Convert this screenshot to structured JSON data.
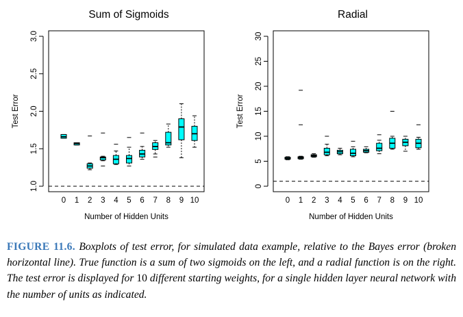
{
  "chart_data": [
    {
      "type": "boxplot",
      "title": "Sum of Sigmoids",
      "xlabel": "Number of Hidden Units",
      "ylabel": "Test Error",
      "categories": [
        "0",
        "1",
        "2",
        "3",
        "4",
        "5",
        "6",
        "7",
        "8",
        "9",
        "10"
      ],
      "ylim": [
        1.0,
        3.0
      ],
      "yticks": [
        "1.0",
        "1.5",
        "2.0",
        "2.5",
        "3.0"
      ],
      "reference_line": {
        "y": 1.0,
        "style": "dashed"
      },
      "box_color": "#00ffff",
      "boxes": [
        {
          "category": "0",
          "whisker_low": 1.64,
          "q1": 1.64,
          "median": 1.66,
          "q3": 1.69,
          "whisker_high": 1.69
        },
        {
          "category": "1",
          "whisker_low": 1.55,
          "q1": 1.55,
          "median": 1.57,
          "q3": 1.58,
          "whisker_high": 1.58
        },
        {
          "category": "2",
          "whisker_low": 1.22,
          "q1": 1.24,
          "median": 1.27,
          "q3": 1.3,
          "whisker_high": 1.31,
          "outliers": [
            1.67
          ]
        },
        {
          "category": "3",
          "whisker_low": 1.34,
          "q1": 1.35,
          "median": 1.38,
          "q3": 1.39,
          "whisker_high": 1.4,
          "outliers": [
            1.27,
            1.71
          ]
        },
        {
          "category": "4",
          "whisker_low": 1.29,
          "q1": 1.3,
          "median": 1.36,
          "q3": 1.41,
          "whisker_high": 1.47,
          "outliers": [
            1.56
          ]
        },
        {
          "category": "5",
          "whisker_low": 1.27,
          "q1": 1.31,
          "median": 1.37,
          "q3": 1.41,
          "whisker_high": 1.52,
          "outliers": [
            1.65
          ]
        },
        {
          "category": "6",
          "whisker_low": 1.36,
          "q1": 1.39,
          "median": 1.43,
          "q3": 1.48,
          "whisker_high": 1.53,
          "outliers": [
            1.71
          ]
        },
        {
          "category": "7",
          "whisker_low": 1.43,
          "q1": 1.49,
          "median": 1.53,
          "q3": 1.58,
          "whisker_high": 1.61,
          "outliers": [
            1.39
          ]
        },
        {
          "category": "8",
          "whisker_low": 1.52,
          "q1": 1.55,
          "median": 1.58,
          "q3": 1.72,
          "whisker_high": 1.83
        },
        {
          "category": "9",
          "whisker_low": 1.38,
          "q1": 1.62,
          "median": 1.79,
          "q3": 1.9,
          "whisker_high": 2.1
        },
        {
          "category": "10",
          "whisker_low": 1.52,
          "q1": 1.61,
          "median": 1.7,
          "q3": 1.8,
          "whisker_high": 1.94
        }
      ]
    },
    {
      "type": "boxplot",
      "title": "Radial",
      "xlabel": "Number of Hidden Units",
      "ylabel": "Test Error",
      "categories": [
        "0",
        "1",
        "2",
        "3",
        "4",
        "5",
        "6",
        "7",
        "8",
        "9",
        "10"
      ],
      "ylim": [
        0,
        30
      ],
      "yticks": [
        "0",
        "5",
        "10",
        "15",
        "20",
        "25",
        "30"
      ],
      "reference_line": {
        "y": 1.0,
        "style": "dashed"
      },
      "box_color": "#00ffff",
      "boxes": [
        {
          "category": "0",
          "whisker_low": 5.3,
          "q1": 5.4,
          "median": 5.6,
          "q3": 5.8,
          "whisker_high": 5.9
        },
        {
          "category": "1",
          "whisker_low": 5.4,
          "q1": 5.5,
          "median": 5.7,
          "q3": 5.9,
          "whisker_high": 6.0,
          "outliers": [
            12.3,
            19.2
          ]
        },
        {
          "category": "2",
          "whisker_low": 5.8,
          "q1": 5.9,
          "median": 6.1,
          "q3": 6.3,
          "whisker_high": 6.5
        },
        {
          "category": "3",
          "whisker_low": 6.1,
          "q1": 6.3,
          "median": 6.8,
          "q3": 7.6,
          "whisker_high": 8.4,
          "outliers": [
            10.0
          ]
        },
        {
          "category": "4",
          "whisker_low": 6.3,
          "q1": 6.5,
          "median": 6.9,
          "q3": 7.2,
          "whisker_high": 7.6
        },
        {
          "category": "5",
          "whisker_low": 5.9,
          "q1": 6.1,
          "median": 6.6,
          "q3": 7.4,
          "whisker_high": 7.9,
          "outliers": [
            9.0
          ]
        },
        {
          "category": "6",
          "whisker_low": 6.7,
          "q1": 6.8,
          "median": 7.1,
          "q3": 7.4,
          "whisker_high": 7.9
        },
        {
          "category": "7",
          "whisker_low": 6.5,
          "q1": 7.1,
          "median": 7.6,
          "q3": 8.6,
          "whisker_high": 9.2,
          "outliers": [
            10.3
          ]
        },
        {
          "category": "8",
          "whisker_low": 7.4,
          "q1": 7.6,
          "median": 8.6,
          "q3": 9.6,
          "whisker_high": 10.0,
          "outliers": [
            15.0
          ]
        },
        {
          "category": "9",
          "whisker_low": 7.0,
          "q1": 8.1,
          "median": 8.8,
          "q3": 9.4,
          "whisker_high": 10.0
        },
        {
          "category": "10",
          "whisker_low": 7.4,
          "q1": 7.7,
          "median": 8.6,
          "q3": 9.4,
          "whisker_high": 9.8,
          "outliers": [
            12.3
          ]
        }
      ]
    }
  ],
  "caption": {
    "label": "FIGURE 11.6.",
    "text_1": "Boxplots of test error, for simulated data example, relative to the Bayes error (broken horizontal line). True function is a sum of two sigmoids on the left, and a radial function is on the right. The test error is displayed for",
    "number": "10",
    "text_2": "different starting weights, for a single hidden layer neural network with the number of units as indicated."
  }
}
